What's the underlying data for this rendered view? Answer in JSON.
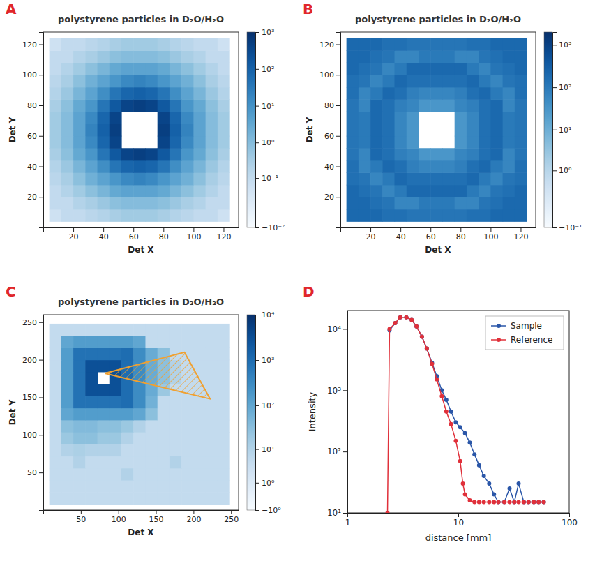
{
  "chart_data": [
    {
      "type": "heatmap",
      "panel_label": "A",
      "title": "polystyrene particles in D₂O/H₂O",
      "x_label": "Det X",
      "y_label": "Det Y",
      "xlim": [
        0,
        130
      ],
      "ylim": [
        0,
        128
      ],
      "xticks": [
        20,
        40,
        60,
        80,
        100,
        120
      ],
      "yticks": [
        20,
        40,
        60,
        80,
        100,
        120
      ],
      "x_edges": [
        4,
        12,
        20,
        28,
        36,
        44,
        52,
        60,
        68,
        76,
        84,
        92,
        100,
        108,
        116,
        124
      ],
      "y_edges": [
        4,
        12,
        20,
        28,
        36,
        44,
        52,
        60,
        68,
        76,
        84,
        92,
        100,
        108,
        116,
        124
      ],
      "cells": [
        [
          0.05,
          0.1,
          0.1,
          0.15,
          0.2,
          0.3,
          0.4,
          0.4,
          0.4,
          0.3,
          0.2,
          0.15,
          0.1,
          0.1,
          0.05
        ],
        [
          0.1,
          0.1,
          0.2,
          0.3,
          0.5,
          0.8,
          1,
          1,
          1,
          0.8,
          0.5,
          0.3,
          0.2,
          0.1,
          0.1
        ],
        [
          0.1,
          0.2,
          0.4,
          0.8,
          1.5,
          3,
          4,
          4,
          4,
          3,
          1.5,
          0.8,
          0.4,
          0.2,
          0.1
        ],
        [
          0.15,
          0.3,
          0.8,
          2,
          4,
          8,
          15,
          20,
          15,
          8,
          4,
          2,
          0.8,
          0.3,
          0.15
        ],
        [
          0.2,
          0.5,
          1.5,
          4,
          12,
          40,
          80,
          100,
          80,
          40,
          12,
          4,
          1.5,
          0.5,
          0.2
        ],
        [
          0.3,
          0.8,
          3,
          8,
          40,
          150,
          400,
          500,
          400,
          150,
          40,
          8,
          3,
          0.8,
          0.3
        ],
        [
          0.4,
          1,
          4,
          15,
          80,
          400,
          null,
          null,
          null,
          400,
          80,
          15,
          4,
          1,
          0.4
        ],
        [
          0.4,
          1,
          4,
          20,
          100,
          500,
          null,
          null,
          null,
          500,
          100,
          20,
          4,
          1,
          0.4
        ],
        [
          0.4,
          1,
          4,
          15,
          80,
          400,
          null,
          null,
          null,
          400,
          80,
          15,
          4,
          1,
          0.4
        ],
        [
          0.3,
          0.8,
          3,
          8,
          40,
          150,
          400,
          500,
          400,
          150,
          40,
          8,
          3,
          0.8,
          0.3
        ],
        [
          0.2,
          0.5,
          1.5,
          4,
          12,
          40,
          80,
          100,
          80,
          40,
          12,
          4,
          1.5,
          0.5,
          0.2
        ],
        [
          0.15,
          0.3,
          0.8,
          2,
          4,
          8,
          15,
          20,
          15,
          8,
          4,
          2,
          0.8,
          0.3,
          0.15
        ],
        [
          0.1,
          0.2,
          0.4,
          0.8,
          1.5,
          3,
          4,
          4,
          4,
          3,
          1.5,
          0.8,
          0.4,
          0.2,
          0.1
        ],
        [
          0.1,
          0.1,
          0.2,
          0.3,
          0.5,
          0.8,
          1,
          1,
          1,
          0.8,
          0.5,
          0.3,
          0.2,
          0.1,
          0.1
        ],
        [
          0.05,
          0.1,
          0.1,
          0.15,
          0.2,
          0.3,
          0.4,
          0.4,
          0.4,
          0.3,
          0.2,
          0.15,
          0.1,
          0.1,
          0.05
        ]
      ],
      "clim": [
        -0.01,
        1000
      ],
      "cticks": [
        {
          "value": 1000,
          "label": "10³"
        },
        {
          "value": 100,
          "label": "10²"
        },
        {
          "value": 10,
          "label": "10¹"
        },
        {
          "value": 1,
          "label": "10⁰"
        },
        {
          "value": 0.1,
          "label": "10⁻¹"
        },
        {
          "value": -0.01,
          "label": "−10⁻²"
        }
      ]
    },
    {
      "type": "heatmap",
      "panel_label": "B",
      "title": "polystyrene particles in D₂O/H₂O",
      "x_label": "Det X",
      "y_label": "Det Y",
      "xlim": [
        0,
        130
      ],
      "ylim": [
        0,
        128
      ],
      "xticks": [
        20,
        40,
        60,
        80,
        100,
        120
      ],
      "yticks": [
        20,
        40,
        60,
        80,
        100,
        120
      ],
      "x_edges": [
        4,
        12,
        20,
        28,
        36,
        44,
        52,
        60,
        68,
        76,
        84,
        92,
        100,
        108,
        116,
        124
      ],
      "y_edges": [
        4,
        12,
        20,
        28,
        36,
        44,
        52,
        60,
        68,
        76,
        84,
        92,
        100,
        108,
        116,
        124
      ],
      "cells": [
        [
          200,
          200,
          200,
          150,
          150,
          120,
          120,
          120,
          120,
          120,
          150,
          150,
          200,
          200,
          200
        ],
        [
          200,
          200,
          150,
          120,
          60,
          60,
          100,
          100,
          100,
          60,
          60,
          120,
          150,
          200,
          200
        ],
        [
          200,
          150,
          120,
          60,
          100,
          200,
          200,
          200,
          200,
          200,
          100,
          60,
          120,
          150,
          200
        ],
        [
          150,
          120,
          60,
          100,
          200,
          150,
          150,
          150,
          150,
          150,
          200,
          100,
          60,
          120,
          150
        ],
        [
          150,
          60,
          100,
          200,
          150,
          80,
          60,
          60,
          60,
          80,
          150,
          200,
          100,
          60,
          150
        ],
        [
          120,
          60,
          200,
          150,
          80,
          60,
          30,
          30,
          30,
          60,
          80,
          150,
          200,
          60,
          120
        ],
        [
          120,
          100,
          200,
          150,
          60,
          30,
          null,
          null,
          null,
          30,
          60,
          150,
          200,
          100,
          120
        ],
        [
          120,
          100,
          200,
          150,
          60,
          30,
          null,
          null,
          null,
          30,
          60,
          150,
          200,
          100,
          120
        ],
        [
          120,
          100,
          200,
          150,
          60,
          30,
          null,
          null,
          null,
          30,
          60,
          150,
          200,
          100,
          120
        ],
        [
          120,
          60,
          200,
          150,
          80,
          60,
          30,
          30,
          30,
          60,
          80,
          150,
          200,
          60,
          120
        ],
        [
          150,
          60,
          100,
          200,
          150,
          80,
          60,
          60,
          60,
          80,
          150,
          200,
          100,
          60,
          150
        ],
        [
          150,
          120,
          60,
          100,
          200,
          150,
          150,
          150,
          150,
          150,
          200,
          100,
          60,
          120,
          150
        ],
        [
          200,
          150,
          120,
          60,
          100,
          200,
          200,
          200,
          200,
          200,
          100,
          60,
          120,
          150,
          200
        ],
        [
          200,
          200,
          150,
          120,
          60,
          60,
          100,
          100,
          100,
          60,
          60,
          120,
          150,
          200,
          200
        ],
        [
          200,
          200,
          200,
          150,
          150,
          120,
          120,
          120,
          120,
          120,
          150,
          150,
          200,
          200,
          200
        ]
      ],
      "clim": [
        -0.1,
        2000
      ],
      "cticks": [
        {
          "value": 1000,
          "label": "10³"
        },
        {
          "value": 100,
          "label": "10²"
        },
        {
          "value": 10,
          "label": "10¹"
        },
        {
          "value": 1,
          "label": "10⁰"
        },
        {
          "value": -0.1,
          "label": "−10⁻¹"
        }
      ]
    },
    {
      "type": "heatmap",
      "panel_label": "C",
      "title": "polystyrene particles in D₂O/H₂O",
      "x_label": "Det X",
      "y_label": "Det Y",
      "xlim": [
        0,
        260
      ],
      "ylim": [
        0,
        260
      ],
      "xticks": [
        50,
        100,
        150,
        200,
        250
      ],
      "yticks": [
        50,
        100,
        150,
        200,
        250
      ],
      "x_edges": [
        8,
        24,
        40,
        56,
        72,
        88,
        104,
        120,
        136,
        152,
        168,
        184,
        200,
        216,
        232,
        248
      ],
      "y_edges": [
        8,
        24,
        40,
        56,
        72,
        88,
        104,
        120,
        136,
        152,
        168,
        184,
        200,
        216,
        232,
        248
      ],
      "cells": [
        [
          5,
          5,
          5,
          5,
          5,
          5,
          5,
          5,
          5,
          5,
          5,
          5,
          5,
          5,
          5
        ],
        [
          5,
          5,
          5,
          5,
          5,
          5,
          5,
          5,
          5,
          5,
          5,
          5,
          5,
          5,
          5
        ],
        [
          5,
          5,
          5,
          5,
          5,
          5,
          10,
          5,
          5,
          5,
          5,
          5,
          5,
          5,
          5
        ],
        [
          5,
          5,
          10,
          5,
          5,
          5,
          5,
          5,
          5,
          5,
          10,
          5,
          5,
          5,
          5
        ],
        [
          5,
          10,
          12,
          10,
          10,
          10,
          5,
          5,
          5,
          5,
          5,
          5,
          5,
          5,
          5
        ],
        [
          5,
          20,
          30,
          30,
          20,
          20,
          10,
          5,
          5,
          5,
          5,
          5,
          5,
          5,
          5
        ],
        [
          5,
          30,
          40,
          40,
          30,
          30,
          20,
          10,
          5,
          5,
          5,
          5,
          5,
          5,
          5
        ],
        [
          5,
          100,
          150,
          150,
          150,
          150,
          150,
          100,
          30,
          5,
          5,
          5,
          5,
          5,
          5
        ],
        [
          5,
          150,
          800,
          800,
          800,
          800,
          1000,
          300,
          60,
          5,
          5,
          5,
          5,
          5,
          5
        ],
        [
          5,
          150,
          800,
          3000,
          3000,
          3000,
          1000,
          300,
          80,
          20,
          5,
          5,
          5,
          5,
          5
        ],
        [
          5,
          150,
          800,
          3000,
          null,
          3000,
          1000,
          300,
          80,
          30,
          10,
          5,
          5,
          5,
          5
        ],
        [
          5,
          150,
          800,
          3000,
          3000,
          3000,
          1000,
          300,
          80,
          30,
          10,
          5,
          5,
          5,
          5
        ],
        [
          5,
          150,
          800,
          800,
          800,
          800,
          1000,
          300,
          80,
          30,
          5,
          5,
          5,
          5,
          5
        ],
        [
          5,
          100,
          150,
          150,
          150,
          150,
          150,
          100,
          5,
          5,
          5,
          5,
          5,
          5,
          5
        ],
        [
          5,
          5,
          5,
          5,
          5,
          5,
          5,
          5,
          5,
          5,
          5,
          5,
          5,
          5,
          5
        ]
      ],
      "clim": [
        -1,
        10000
      ],
      "cticks": [
        {
          "value": 10000,
          "label": "10⁴"
        },
        {
          "value": 1000,
          "label": "10³"
        },
        {
          "value": 100,
          "label": "10²"
        },
        {
          "value": 10,
          "label": "10¹"
        },
        {
          "value": 1,
          "label": "10⁰"
        },
        {
          "value": -1,
          "label": "−10⁰"
        }
      ],
      "sector": {
        "x": [
          82,
          188,
          222
        ],
        "y": [
          182,
          210,
          148
        ]
      }
    },
    {
      "type": "line",
      "panel_label": "D",
      "x_label": "distance [mm]",
      "y_label": "Intensity",
      "log": true,
      "xlim": [
        1,
        100
      ],
      "ylim": [
        10,
        20000
      ],
      "xticks": [
        1,
        10,
        100
      ],
      "yticks": [
        {
          "value": 10,
          "label": "10¹"
        },
        {
          "value": 100,
          "label": "10²"
        },
        {
          "value": 1000,
          "label": "10³"
        },
        {
          "value": 10000,
          "label": "10⁴"
        }
      ],
      "legend": "upper right",
      "series": [
        {
          "name": "Sample",
          "color": "#2a56a8",
          "marker": "circle",
          "x": [
            2.4,
            2.7,
            3.0,
            3.4,
            3.8,
            4.2,
            4.7,
            5.2,
            5.8,
            6.4,
            7.1,
            7.8,
            8.6,
            9.5,
            10.4,
            11.5,
            12.7,
            14,
            15.4,
            17,
            19,
            21,
            23,
            26,
            29,
            32,
            35,
            39,
            43,
            48,
            53,
            59
          ],
          "values": [
            9500,
            12500,
            15500,
            15500,
            14000,
            11000,
            7500,
            4800,
            2800,
            1700,
            1000,
            700,
            450,
            300,
            250,
            200,
            140,
            90,
            60,
            40,
            30,
            20,
            15,
            15,
            25,
            15,
            30,
            15,
            15,
            15,
            15,
            15
          ]
        },
        {
          "name": "Reference",
          "color": "#e0303a",
          "marker": "circle",
          "x": [
            2.3,
            2.4,
            2.7,
            3.0,
            3.4,
            3.8,
            4.2,
            4.7,
            5.2,
            5.8,
            6.4,
            7.1,
            7.8,
            8.6,
            9.5,
            10.4,
            11.0,
            11.5,
            12.7,
            14,
            15.4,
            17,
            19,
            21,
            23,
            26,
            29,
            32,
            35,
            39,
            43,
            48,
            53,
            59
          ],
          "values": [
            10,
            10000,
            12500,
            15500,
            15500,
            14000,
            11000,
            7500,
            4800,
            2700,
            1500,
            800,
            450,
            280,
            150,
            70,
            30,
            20,
            16,
            15,
            15,
            15,
            15,
            15,
            15,
            15,
            15,
            15,
            15,
            15,
            15,
            15,
            15,
            15
          ]
        }
      ]
    }
  ]
}
